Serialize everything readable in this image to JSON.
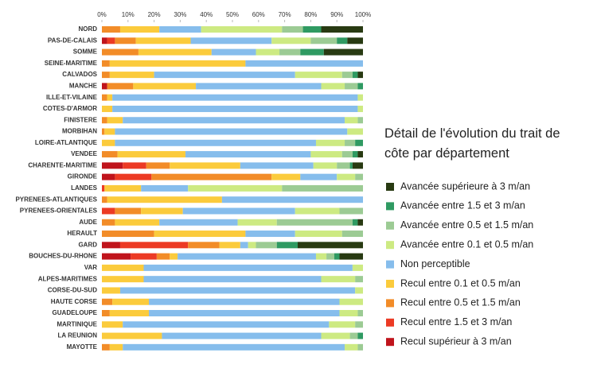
{
  "chart_data": {
    "type": "stacked-barh",
    "title": "Détail de l'évolution du trait de côte par département",
    "categories": [
      "NORD",
      "PAS-DE-CALAIS",
      "SOMME",
      "SEINE-MARITIME",
      "CALVADOS",
      "MANCHE",
      "ILLE-ET-VILAINE",
      "COTES-D'ARMOR",
      "FINISTERE",
      "MORBIHAN",
      "LOIRE-ATLANTIQUE",
      "VENDEE",
      "CHARENTE-MARITIME",
      "GIRONDE",
      "LANDES",
      "PYRENEES-ATLANTIQUES",
      "PYRENEES-ORIENTALES",
      "AUDE",
      "HERAULT",
      "GARD",
      "BOUCHES-DU-RHONE",
      "VAR",
      "ALPES-MARITIMES",
      "CORSE-DU-SUD",
      "HAUTE CORSE",
      "GUADELOUPE",
      "MARTINIQUE",
      "LA REUNION",
      "MAYOTTE"
    ],
    "series": [
      {
        "name": "Recul supérieur à 3 m/an",
        "color": "#c0141c",
        "values": [
          0,
          2,
          0,
          0,
          0,
          2,
          0,
          0,
          0,
          0,
          0,
          0,
          8,
          5,
          0,
          0,
          0,
          0,
          0,
          7,
          11,
          0,
          0,
          0,
          0,
          0,
          0,
          0,
          0
        ]
      },
      {
        "name": "Recul entre 1.5 et 3 m/an",
        "color": "#ec3a24",
        "values": [
          0,
          3,
          0,
          0,
          0,
          0,
          0,
          0,
          0,
          0,
          0,
          0,
          9,
          14,
          1,
          0,
          5,
          0,
          0,
          26,
          10,
          0,
          0,
          0,
          0,
          0,
          0,
          0,
          0
        ]
      },
      {
        "name": "Recul entre 0.5 et 1.5 m/an",
        "color": "#f28c28",
        "values": [
          7,
          8,
          14,
          3,
          3,
          10,
          2,
          0,
          2,
          1,
          0,
          6,
          9,
          46,
          0,
          2,
          10,
          5,
          20,
          12,
          5,
          0,
          0,
          0,
          4,
          3,
          0,
          0,
          3
        ]
      },
      {
        "name": "Recul entre 0.1 et 0.5 m/an",
        "color": "#fbcb3c",
        "values": [
          15,
          21,
          28,
          52,
          17,
          24,
          2,
          4,
          6,
          4,
          5,
          26,
          27,
          11,
          14,
          44,
          16,
          17,
          35,
          8,
          3,
          16,
          16,
          7,
          14,
          15,
          8,
          23,
          5
        ]
      },
      {
        "name": "Non perceptible",
        "color": "#86bdec",
        "values": [
          16,
          31,
          17,
          45,
          54,
          48,
          94,
          94,
          85,
          89,
          77,
          48,
          28,
          14,
          18,
          54,
          43,
          30,
          19,
          3,
          53,
          80,
          68,
          90,
          73,
          73,
          79,
          61,
          85
        ]
      },
      {
        "name": "Avancée entre 0.1 et 0.5 m/an",
        "color": "#cdea82",
        "values": [
          31,
          15,
          9,
          0,
          18,
          9,
          2,
          2,
          5,
          6,
          11,
          12,
          9,
          7,
          36,
          0,
          17,
          15,
          18,
          3,
          4,
          4,
          13,
          3,
          9,
          7,
          10,
          11,
          5
        ]
      },
      {
        "name": "Avancée entre 0.5 et 1.5 m/an",
        "color": "#9ccb94",
        "values": [
          8,
          10,
          8,
          0,
          4,
          5,
          0,
          0,
          2,
          0,
          4,
          4,
          5,
          3,
          31,
          0,
          9,
          29,
          8,
          8,
          3,
          0,
          3,
          0,
          0,
          2,
          3,
          3,
          2
        ]
      },
      {
        "name": "Avancée entre 1.5 et 3 m/an",
        "color": "#2f9a62",
        "values": [
          7,
          4,
          9,
          0,
          2,
          2,
          0,
          0,
          0,
          0,
          3,
          2,
          1,
          0,
          0,
          0,
          0,
          2,
          0,
          8,
          2,
          0,
          0,
          0,
          0,
          0,
          0,
          2,
          0
        ]
      },
      {
        "name": "Avancée supérieure à 3 m/an",
        "color": "#283a12",
        "values": [
          16,
          6,
          15,
          0,
          2,
          0,
          0,
          0,
          0,
          0,
          0,
          2,
          4,
          0,
          0,
          0,
          0,
          2,
          0,
          25,
          9,
          0,
          0,
          0,
          0,
          0,
          0,
          0,
          0
        ]
      }
    ],
    "xlim": [
      0,
      100
    ],
    "xticks": [
      {
        "value": 0,
        "label": "0%"
      },
      {
        "value": 10,
        "label": "10%"
      },
      {
        "value": 20,
        "label": "20%"
      },
      {
        "value": 30,
        "label": "30%"
      },
      {
        "value": 40,
        "label": "40%"
      },
      {
        "value": 50,
        "label": "50%"
      },
      {
        "value": 60,
        "label": "60%"
      },
      {
        "value": 70,
        "label": "70%"
      },
      {
        "value": 80,
        "label": "80%"
      },
      {
        "value": 90,
        "label": "90%"
      },
      {
        "value": 100,
        "label": "100%"
      }
    ],
    "legend": "right"
  }
}
